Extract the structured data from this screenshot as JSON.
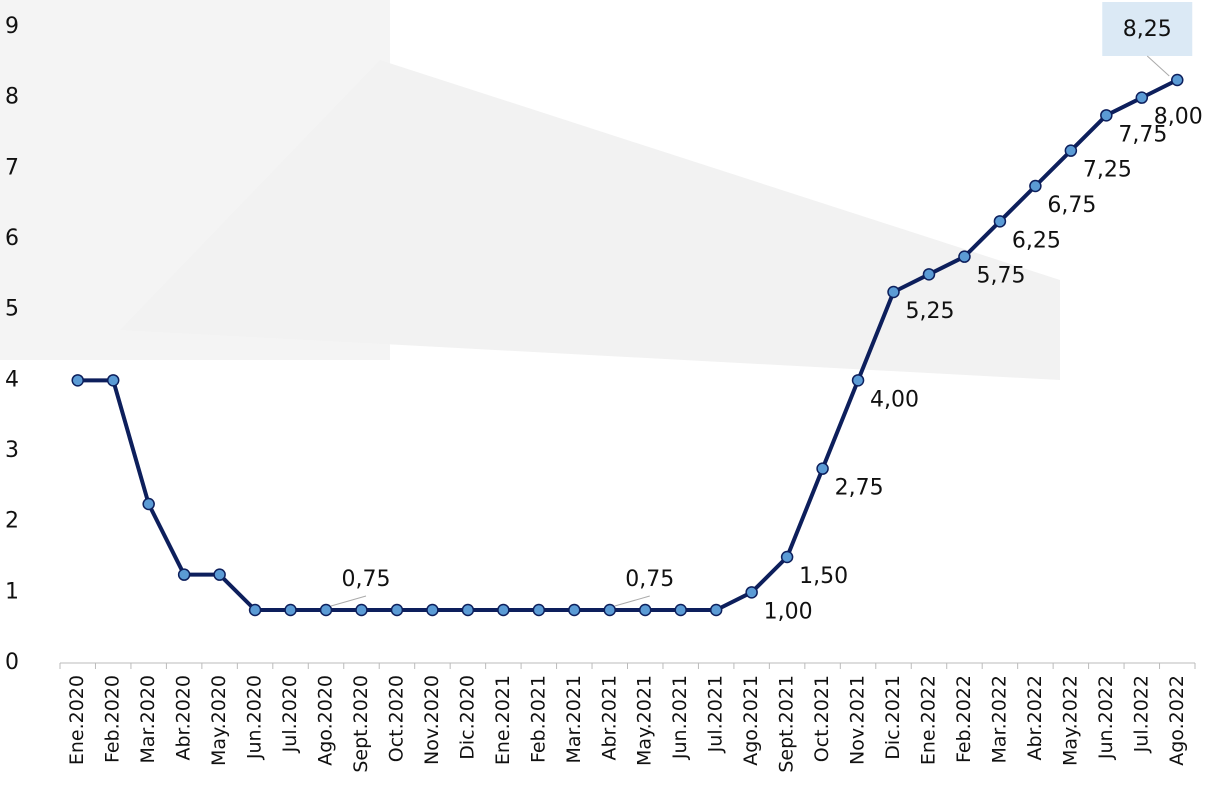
{
  "chart_data": {
    "type": "line",
    "categories": [
      "Ene.2020",
      "Feb.2020",
      "Mar.2020",
      "Abr.2020",
      "May.2020",
      "Jun.2020",
      "Jul.2020",
      "Ago.2020",
      "Sept.2020",
      "Oct.2020",
      "Nov.2020",
      "Dic.2020",
      "Ene.2021",
      "Feb.2021",
      "Mar.2021",
      "Abr.2021",
      "May.2021",
      "Jun.2021",
      "Jul.2021",
      "Ago.2021",
      "Sept.2021",
      "Oct.2021",
      "Nov.2021",
      "Dic.2021",
      "Ene.2022",
      "Feb.2022",
      "Mar.2022",
      "Abr.2022",
      "May.2022",
      "Jun.2022",
      "Jul.2022",
      "Ago.2022"
    ],
    "values": [
      4,
      4,
      2.25,
      1.25,
      1.25,
      0.75,
      0.75,
      0.75,
      0.75,
      0.75,
      0.75,
      0.75,
      0.75,
      0.75,
      0.75,
      0.75,
      0.75,
      0.75,
      0.75,
      1.0,
      1.5,
      2.75,
      4.0,
      5.25,
      5.5,
      5.75,
      6.25,
      6.75,
      7.25,
      7.75,
      8.0,
      8.25
    ],
    "value_labels": [
      null,
      null,
      null,
      null,
      null,
      null,
      null,
      "0,75",
      null,
      null,
      null,
      null,
      null,
      null,
      null,
      "0,75",
      null,
      null,
      null,
      "1,00",
      "1,50",
      "2,75",
      "4,00",
      "5,25",
      null,
      "5,75",
      "6,25",
      "6,75",
      "7,25",
      "7,75",
      "8,00",
      "8,25"
    ],
    "color": "#0d1f5c",
    "marker_color": "#5b9bd5",
    "ylim": [
      0,
      9
    ],
    "yticks": [
      0,
      1,
      2,
      3,
      4,
      5,
      6,
      7,
      8,
      9
    ],
    "grid": false
  }
}
